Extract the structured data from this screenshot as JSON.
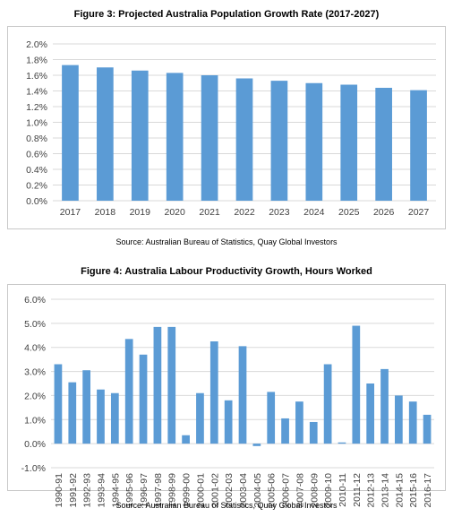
{
  "chart_data": [
    {
      "type": "bar",
      "title": "Figure 3: Projected Australia Population Growth Rate (2017-2027)",
      "source": "Source: Australian Bureau of Statistics, Quay Global Investors",
      "categories": [
        "2017",
        "2018",
        "2019",
        "2020",
        "2021",
        "2022",
        "2023",
        "2024",
        "2025",
        "2026",
        "2027"
      ],
      "values": [
        1.73,
        1.7,
        1.66,
        1.63,
        1.6,
        1.56,
        1.53,
        1.5,
        1.48,
        1.44,
        1.41
      ],
      "ylim": [
        0,
        2.0
      ],
      "yticks": [
        0.0,
        0.2,
        0.4,
        0.6,
        0.8,
        1.0,
        1.2,
        1.4,
        1.6,
        1.8,
        2.0
      ],
      "ytick_labels": [
        "0.0%",
        "0.2%",
        "0.4%",
        "0.6%",
        "0.8%",
        "1.0%",
        "1.2%",
        "1.4%",
        "1.6%",
        "1.8%",
        "2.0%"
      ],
      "xlabel": "",
      "ylabel": "",
      "grid": true,
      "legend": "none",
      "colors": {
        "bar": "#5b9bd5",
        "grid": "#d9d9d9"
      }
    },
    {
      "type": "bar",
      "title": "Figure 4: Australia Labour Productivity Growth, Hours Worked",
      "source": "Source: Australian Bureau of Statistics, Quay Global Investors",
      "categories": [
        "1990-91",
        "1991-92",
        "1992-93",
        "1993-94",
        "1994-95",
        "1995-96",
        "1996-97",
        "1997-98",
        "1998-99",
        "1999-00",
        "2000-01",
        "2001-02",
        "2002-03",
        "2003-04",
        "2004-05",
        "2005-06",
        "2006-07",
        "2007-08",
        "2008-09",
        "2009-10",
        "2010-11",
        "2011-12",
        "2012-13",
        "2013-14",
        "2014-15",
        "2015-16",
        "2016-17"
      ],
      "values": [
        3.3,
        2.55,
        3.05,
        2.25,
        2.1,
        4.35,
        3.7,
        4.85,
        4.85,
        0.35,
        2.1,
        4.25,
        1.8,
        4.05,
        -0.1,
        2.15,
        1.05,
        1.75,
        0.9,
        3.3,
        0.05,
        4.9,
        2.5,
        3.1,
        2.0,
        1.75,
        1.2
      ],
      "ylim": [
        -1.0,
        6.0
      ],
      "yticks": [
        -1.0,
        0.0,
        1.0,
        2.0,
        3.0,
        4.0,
        5.0,
        6.0
      ],
      "ytick_labels": [
        "-1.0%",
        "0.0%",
        "1.0%",
        "2.0%",
        "3.0%",
        "4.0%",
        "5.0%",
        "6.0%"
      ],
      "xlabel": "",
      "ylabel": "",
      "grid": true,
      "legend": "none",
      "colors": {
        "bar": "#5b9bd5",
        "grid": "#d9d9d9"
      }
    }
  ]
}
